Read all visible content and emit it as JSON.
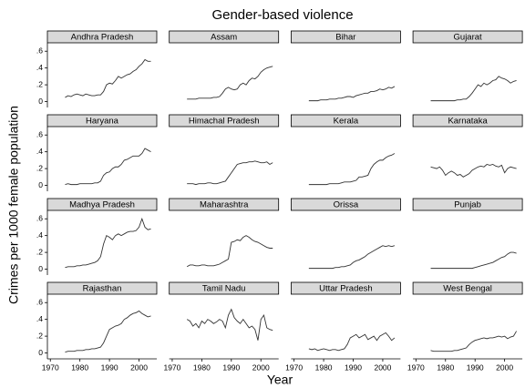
{
  "title": "Gender-based violence",
  "x_label": "Year",
  "y_label": "Crimes per 1000 female population",
  "chart_data": [
    {
      "type": "line",
      "title": "Andhra Pradesh",
      "x": [
        1975,
        1976,
        1977,
        1978,
        1979,
        1980,
        1981,
        1982,
        1983,
        1984,
        1985,
        1986,
        1987,
        1988,
        1989,
        1990,
        1991,
        1992,
        1993,
        1994,
        1995,
        1996,
        1997,
        1998,
        1999,
        2000,
        2001,
        2002,
        2003,
        2004
      ],
      "values": [
        0.05,
        0.07,
        0.06,
        0.08,
        0.09,
        0.08,
        0.07,
        0.09,
        0.08,
        0.07,
        0.07,
        0.08,
        0.08,
        0.12,
        0.2,
        0.22,
        0.21,
        0.25,
        0.3,
        0.28,
        0.3,
        0.32,
        0.33,
        0.36,
        0.38,
        0.42,
        0.45,
        0.5,
        0.48,
        0.48
      ],
      "color": "#333333",
      "xlim": [
        1969,
        2006
      ],
      "ylim": [
        -0.07,
        0.7
      ],
      "yticks": [
        0,
        {
          "value": 0.2,
          "label": ".2"
        },
        {
          "value": 0.4,
          "label": ".4"
        },
        {
          "value": 0.6,
          "label": ".6"
        }
      ]
    },
    {
      "type": "line",
      "title": "Assam",
      "x": [
        1975,
        1976,
        1977,
        1978,
        1979,
        1980,
        1981,
        1982,
        1983,
        1984,
        1985,
        1986,
        1987,
        1988,
        1989,
        1990,
        1991,
        1992,
        1993,
        1994,
        1995,
        1996,
        1997,
        1998,
        1999,
        2000,
        2001,
        2002,
        2003,
        2004
      ],
      "values": [
        0.03,
        0.03,
        0.03,
        0.03,
        0.04,
        0.04,
        0.04,
        0.04,
        0.04,
        0.05,
        0.05,
        0.06,
        0.1,
        0.15,
        0.17,
        0.15,
        0.14,
        0.15,
        0.2,
        0.22,
        0.2,
        0.25,
        0.28,
        0.27,
        0.3,
        0.35,
        0.38,
        0.4,
        0.41,
        0.42
      ],
      "color": "#333333",
      "xlim": [
        1969,
        2006
      ],
      "ylim": [
        -0.07,
        0.7
      ]
    },
    {
      "type": "line",
      "title": "Bihar",
      "x": [
        1975,
        1976,
        1977,
        1978,
        1979,
        1980,
        1981,
        1982,
        1983,
        1984,
        1985,
        1986,
        1987,
        1988,
        1989,
        1990,
        1991,
        1992,
        1993,
        1994,
        1995,
        1996,
        1997,
        1998,
        1999,
        2000,
        2001,
        2002,
        2003,
        2004
      ],
      "values": [
        0.01,
        0.01,
        0.01,
        0.01,
        0.02,
        0.02,
        0.02,
        0.03,
        0.03,
        0.03,
        0.04,
        0.04,
        0.05,
        0.06,
        0.06,
        0.05,
        0.07,
        0.08,
        0.09,
        0.1,
        0.1,
        0.12,
        0.12,
        0.13,
        0.15,
        0.14,
        0.15,
        0.17,
        0.16,
        0.18
      ],
      "color": "#333333",
      "xlim": [
        1969,
        2006
      ],
      "ylim": [
        -0.07,
        0.7
      ]
    },
    {
      "type": "line",
      "title": "Gujarat",
      "x": [
        1975,
        1976,
        1977,
        1978,
        1979,
        1980,
        1981,
        1982,
        1983,
        1984,
        1985,
        1986,
        1987,
        1988,
        1989,
        1990,
        1991,
        1992,
        1993,
        1994,
        1995,
        1996,
        1997,
        1998,
        1999,
        2000,
        2001,
        2002,
        2003,
        2004
      ],
      "values": [
        0.01,
        0.01,
        0.01,
        0.01,
        0.01,
        0.01,
        0.01,
        0.01,
        0.01,
        0.02,
        0.02,
        0.03,
        0.03,
        0.06,
        0.1,
        0.15,
        0.2,
        0.18,
        0.22,
        0.2,
        0.22,
        0.25,
        0.26,
        0.3,
        0.28,
        0.27,
        0.25,
        0.22,
        0.24,
        0.25
      ],
      "color": "#333333",
      "xlim": [
        1969,
        2006
      ],
      "ylim": [
        -0.07,
        0.7
      ]
    },
    {
      "type": "line",
      "title": "Haryana",
      "x": [
        1975,
        1976,
        1977,
        1978,
        1979,
        1980,
        1981,
        1982,
        1983,
        1984,
        1985,
        1986,
        1987,
        1988,
        1989,
        1990,
        1991,
        1992,
        1993,
        1994,
        1995,
        1996,
        1997,
        1998,
        1999,
        2000,
        2001,
        2002,
        2003,
        2004
      ],
      "values": [
        0.01,
        0.02,
        0.01,
        0.01,
        0.01,
        0.02,
        0.02,
        0.02,
        0.02,
        0.02,
        0.03,
        0.03,
        0.05,
        0.12,
        0.15,
        0.16,
        0.2,
        0.22,
        0.22,
        0.25,
        0.3,
        0.31,
        0.33,
        0.35,
        0.35,
        0.35,
        0.38,
        0.44,
        0.42,
        0.4
      ],
      "color": "#333333",
      "xlim": [
        1969,
        2006
      ],
      "ylim": [
        -0.07,
        0.7
      ],
      "yticks": [
        0,
        {
          "value": 0.2,
          "label": ".2"
        },
        {
          "value": 0.4,
          "label": ".4"
        },
        {
          "value": 0.6,
          "label": ".6"
        }
      ]
    },
    {
      "type": "line",
      "title": "Himachal Pradesh",
      "x": [
        1975,
        1976,
        1977,
        1978,
        1979,
        1980,
        1981,
        1982,
        1983,
        1984,
        1985,
        1986,
        1987,
        1988,
        1989,
        1990,
        1991,
        1992,
        1993,
        1994,
        1995,
        1996,
        1997,
        1998,
        1999,
        2000,
        2001,
        2002,
        2003,
        2004
      ],
      "values": [
        0.02,
        0.02,
        0.02,
        0.01,
        0.02,
        0.02,
        0.02,
        0.03,
        0.03,
        0.02,
        0.02,
        0.03,
        0.04,
        0.05,
        0.1,
        0.15,
        0.2,
        0.25,
        0.26,
        0.27,
        0.27,
        0.28,
        0.28,
        0.29,
        0.28,
        0.27,
        0.27,
        0.28,
        0.25,
        0.27
      ],
      "color": "#333333",
      "xlim": [
        1969,
        2006
      ],
      "ylim": [
        -0.07,
        0.7
      ]
    },
    {
      "type": "line",
      "title": "Kerala",
      "x": [
        1975,
        1976,
        1977,
        1978,
        1979,
        1980,
        1981,
        1982,
        1983,
        1984,
        1985,
        1986,
        1987,
        1988,
        1989,
        1990,
        1991,
        1992,
        1993,
        1994,
        1995,
        1996,
        1997,
        1998,
        1999,
        2000,
        2001,
        2002,
        2003,
        2004
      ],
      "values": [
        0.01,
        0.01,
        0.01,
        0.01,
        0.01,
        0.01,
        0.01,
        0.02,
        0.02,
        0.02,
        0.02,
        0.03,
        0.04,
        0.04,
        0.04,
        0.05,
        0.06,
        0.1,
        0.1,
        0.11,
        0.12,
        0.2,
        0.25,
        0.28,
        0.3,
        0.3,
        0.33,
        0.35,
        0.36,
        0.38
      ],
      "color": "#333333",
      "xlim": [
        1969,
        2006
      ],
      "ylim": [
        -0.07,
        0.7
      ]
    },
    {
      "type": "line",
      "title": "Karnataka",
      "x": [
        1975,
        1976,
        1977,
        1978,
        1979,
        1980,
        1981,
        1982,
        1983,
        1984,
        1985,
        1986,
        1987,
        1988,
        1989,
        1990,
        1991,
        1992,
        1993,
        1994,
        1995,
        1996,
        1997,
        1998,
        1999,
        2000,
        2001,
        2002,
        2003,
        2004
      ],
      "values": [
        0.22,
        0.21,
        0.2,
        0.22,
        0.18,
        0.12,
        0.15,
        0.17,
        0.15,
        0.12,
        0.13,
        0.1,
        0.12,
        0.14,
        0.18,
        0.2,
        0.22,
        0.23,
        0.22,
        0.25,
        0.24,
        0.25,
        0.23,
        0.22,
        0.24,
        0.15,
        0.2,
        0.22,
        0.21,
        0.2
      ],
      "color": "#333333",
      "xlim": [
        1969,
        2006
      ],
      "ylim": [
        -0.07,
        0.7
      ]
    },
    {
      "type": "line",
      "title": "Madhya Pradesh",
      "x": [
        1975,
        1976,
        1977,
        1978,
        1979,
        1980,
        1981,
        1982,
        1983,
        1984,
        1985,
        1986,
        1987,
        1988,
        1989,
        1990,
        1991,
        1992,
        1993,
        1994,
        1995,
        1996,
        1997,
        1998,
        1999,
        2000,
        2001,
        2002,
        2003,
        2004
      ],
      "values": [
        0.02,
        0.03,
        0.03,
        0.03,
        0.04,
        0.04,
        0.05,
        0.05,
        0.06,
        0.07,
        0.08,
        0.1,
        0.15,
        0.3,
        0.4,
        0.38,
        0.35,
        0.4,
        0.42,
        0.4,
        0.42,
        0.44,
        0.45,
        0.45,
        0.46,
        0.5,
        0.6,
        0.5,
        0.47,
        0.48
      ],
      "color": "#333333",
      "xlim": [
        1969,
        2006
      ],
      "ylim": [
        -0.07,
        0.7
      ],
      "yticks": [
        0,
        {
          "value": 0.2,
          "label": ".2"
        },
        {
          "value": 0.4,
          "label": ".4"
        },
        {
          "value": 0.6,
          "label": ".6"
        }
      ]
    },
    {
      "type": "line",
      "title": "Maharashtra",
      "x": [
        1975,
        1976,
        1977,
        1978,
        1979,
        1980,
        1981,
        1982,
        1983,
        1984,
        1985,
        1986,
        1987,
        1988,
        1989,
        1990,
        1991,
        1992,
        1993,
        1994,
        1995,
        1996,
        1997,
        1998,
        1999,
        2000,
        2001,
        2002,
        2003,
        2004
      ],
      "values": [
        0.03,
        0.05,
        0.05,
        0.04,
        0.04,
        0.05,
        0.05,
        0.04,
        0.04,
        0.04,
        0.05,
        0.06,
        0.08,
        0.1,
        0.12,
        0.32,
        0.33,
        0.35,
        0.34,
        0.38,
        0.4,
        0.38,
        0.35,
        0.33,
        0.32,
        0.3,
        0.28,
        0.26,
        0.25,
        0.25
      ],
      "color": "#333333",
      "xlim": [
        1969,
        2006
      ],
      "ylim": [
        -0.07,
        0.7
      ]
    },
    {
      "type": "line",
      "title": "Orissa",
      "x": [
        1975,
        1976,
        1977,
        1978,
        1979,
        1980,
        1981,
        1982,
        1983,
        1984,
        1985,
        1986,
        1987,
        1988,
        1989,
        1990,
        1991,
        1992,
        1993,
        1994,
        1995,
        1996,
        1997,
        1998,
        1999,
        2000,
        2001,
        2002,
        2003,
        2004
      ],
      "values": [
        0.01,
        0.01,
        0.01,
        0.01,
        0.01,
        0.01,
        0.01,
        0.01,
        0.01,
        0.02,
        0.02,
        0.03,
        0.03,
        0.04,
        0.05,
        0.08,
        0.1,
        0.11,
        0.13,
        0.15,
        0.18,
        0.2,
        0.22,
        0.24,
        0.26,
        0.28,
        0.27,
        0.28,
        0.27,
        0.28
      ],
      "color": "#333333",
      "xlim": [
        1969,
        2006
      ],
      "ylim": [
        -0.07,
        0.7
      ]
    },
    {
      "type": "line",
      "title": "Punjab",
      "x": [
        1975,
        1976,
        1977,
        1978,
        1979,
        1980,
        1981,
        1982,
        1983,
        1984,
        1985,
        1986,
        1987,
        1988,
        1989,
        1990,
        1991,
        1992,
        1993,
        1994,
        1995,
        1996,
        1997,
        1998,
        1999,
        2000,
        2001,
        2002,
        2003,
        2004
      ],
      "values": [
        0.01,
        0.01,
        0.01,
        0.01,
        0.01,
        0.01,
        0.01,
        0.01,
        0.01,
        0.01,
        0.01,
        0.01,
        0.01,
        0.01,
        0.01,
        0.02,
        0.03,
        0.04,
        0.05,
        0.06,
        0.07,
        0.08,
        0.1,
        0.12,
        0.14,
        0.15,
        0.18,
        0.2,
        0.2,
        0.19
      ],
      "color": "#333333",
      "xlim": [
        1969,
        2006
      ],
      "ylim": [
        -0.07,
        0.7
      ]
    },
    {
      "type": "line",
      "title": "Rajasthan",
      "x": [
        1975,
        1976,
        1977,
        1978,
        1979,
        1980,
        1981,
        1982,
        1983,
        1984,
        1985,
        1986,
        1987,
        1988,
        1989,
        1990,
        1991,
        1992,
        1993,
        1994,
        1995,
        1996,
        1997,
        1998,
        1999,
        2000,
        2001,
        2002,
        2003,
        2004
      ],
      "values": [
        0.01,
        0.02,
        0.02,
        0.02,
        0.03,
        0.03,
        0.03,
        0.04,
        0.04,
        0.05,
        0.05,
        0.06,
        0.07,
        0.12,
        0.2,
        0.28,
        0.3,
        0.32,
        0.33,
        0.35,
        0.4,
        0.42,
        0.45,
        0.47,
        0.48,
        0.5,
        0.47,
        0.45,
        0.43,
        0.44
      ],
      "color": "#333333",
      "xlim": [
        1969,
        2006
      ],
      "ylim": [
        -0.07,
        0.7
      ],
      "yticks": [
        0,
        {
          "value": 0.2,
          "label": ".2"
        },
        {
          "value": 0.4,
          "label": ".4"
        },
        {
          "value": 0.6,
          "label": ".6"
        }
      ],
      "xticks": [
        1970,
        1980,
        1990,
        2000
      ]
    },
    {
      "type": "line",
      "title": "Tamil Nadu",
      "x": [
        1975,
        1976,
        1977,
        1978,
        1979,
        1980,
        1981,
        1982,
        1983,
        1984,
        1985,
        1986,
        1987,
        1988,
        1989,
        1990,
        1991,
        1992,
        1993,
        1994,
        1995,
        1996,
        1997,
        1998,
        1999,
        2000,
        2001,
        2002,
        2003,
        2004
      ],
      "values": [
        0.4,
        0.38,
        0.32,
        0.35,
        0.3,
        0.38,
        0.35,
        0.4,
        0.38,
        0.35,
        0.37,
        0.4,
        0.38,
        0.3,
        0.45,
        0.52,
        0.42,
        0.38,
        0.35,
        0.4,
        0.35,
        0.3,
        0.32,
        0.28,
        0.15,
        0.4,
        0.45,
        0.3,
        0.28,
        0.27
      ],
      "color": "#333333",
      "xlim": [
        1969,
        2006
      ],
      "ylim": [
        -0.07,
        0.7
      ],
      "xticks": [
        1970,
        1980,
        1990,
        2000
      ]
    },
    {
      "type": "line",
      "title": "Uttar Pradesh",
      "x": [
        1975,
        1976,
        1977,
        1978,
        1979,
        1980,
        1981,
        1982,
        1983,
        1984,
        1985,
        1986,
        1987,
        1988,
        1989,
        1990,
        1991,
        1992,
        1993,
        1994,
        1995,
        1996,
        1997,
        1998,
        1999,
        2000,
        2001,
        2002,
        2003,
        2004
      ],
      "values": [
        0.05,
        0.04,
        0.05,
        0.03,
        0.04,
        0.05,
        0.04,
        0.03,
        0.04,
        0.04,
        0.03,
        0.04,
        0.05,
        0.1,
        0.18,
        0.2,
        0.22,
        0.18,
        0.2,
        0.22,
        0.16,
        0.18,
        0.2,
        0.15,
        0.2,
        0.22,
        0.24,
        0.2,
        0.15,
        0.18
      ],
      "color": "#333333",
      "xlim": [
        1969,
        2006
      ],
      "ylim": [
        -0.07,
        0.7
      ],
      "xticks": [
        1970,
        1980,
        1990,
        2000
      ]
    },
    {
      "type": "line",
      "title": "West Bengal",
      "x": [
        1975,
        1976,
        1977,
        1978,
        1979,
        1980,
        1981,
        1982,
        1983,
        1984,
        1985,
        1986,
        1987,
        1988,
        1989,
        1990,
        1991,
        1992,
        1993,
        1994,
        1995,
        1996,
        1997,
        1998,
        1999,
        2000,
        2001,
        2002,
        2003,
        2004
      ],
      "values": [
        0.03,
        0.02,
        0.02,
        0.02,
        0.02,
        0.02,
        0.02,
        0.02,
        0.03,
        0.03,
        0.04,
        0.05,
        0.06,
        0.1,
        0.13,
        0.15,
        0.16,
        0.17,
        0.18,
        0.17,
        0.18,
        0.18,
        0.19,
        0.2,
        0.19,
        0.2,
        0.17,
        0.19,
        0.2,
        0.26
      ],
      "color": "#333333",
      "xlim": [
        1969,
        2006
      ],
      "ylim": [
        -0.07,
        0.7
      ],
      "xticks": [
        1970,
        1980,
        1990,
        2000
      ]
    }
  ]
}
